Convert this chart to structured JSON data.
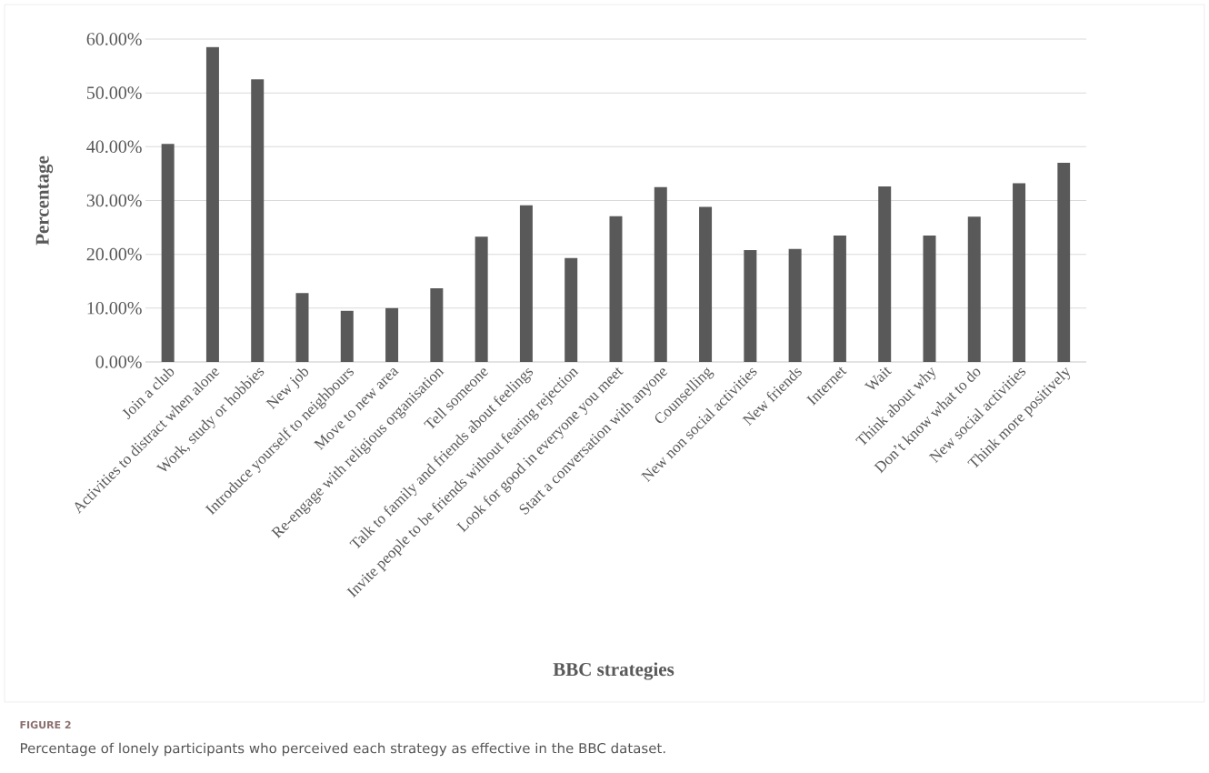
{
  "chart_data": {
    "type": "bar",
    "xlabel": "BBC strategies",
    "ylabel": "Percentage",
    "annotations": [
      "FIGURE 2",
      "Percentage of lonely participants who perceived each strategy as effective in the BBC dataset."
    ],
    "categories": [
      "Join a club",
      "Activities to distract when alone",
      "Work, study or hobbies",
      "New job",
      "Introduce yourself to neighbours",
      "Move to new area",
      "Re-engage with religious organisation",
      "Tell someone",
      "Talk to family and friends about feelings",
      "Invite people to be friends without fearing rejection",
      "Look for good in everyone you meet",
      "Start a conversation with anyone",
      "Counselling",
      "New non social activities",
      "New friends",
      "Internet",
      "Wait",
      "Think about why",
      "Don’t know what to do",
      "New social activities",
      "Think more positively"
    ],
    "values": [
      40.5,
      58.5,
      52.5,
      12.8,
      9.5,
      10.0,
      13.7,
      23.3,
      29.1,
      19.3,
      27.1,
      32.5,
      28.8,
      20.8,
      21.0,
      23.5,
      32.6,
      23.5,
      27.0,
      33.2,
      37.0
    ],
    "color": "#595959",
    "ylim": [
      0,
      60
    ],
    "yticks": [
      {
        "value": 0,
        "label": "0.00%"
      },
      {
        "value": 10,
        "label": "10.00%"
      },
      {
        "value": 20,
        "label": "20.00%"
      },
      {
        "value": 30,
        "label": "30.00%"
      },
      {
        "value": 40,
        "label": "40.00%"
      },
      {
        "value": 50,
        "label": "50.00%"
      },
      {
        "value": 60,
        "label": "60.00%"
      }
    ],
    "grid": "y"
  }
}
